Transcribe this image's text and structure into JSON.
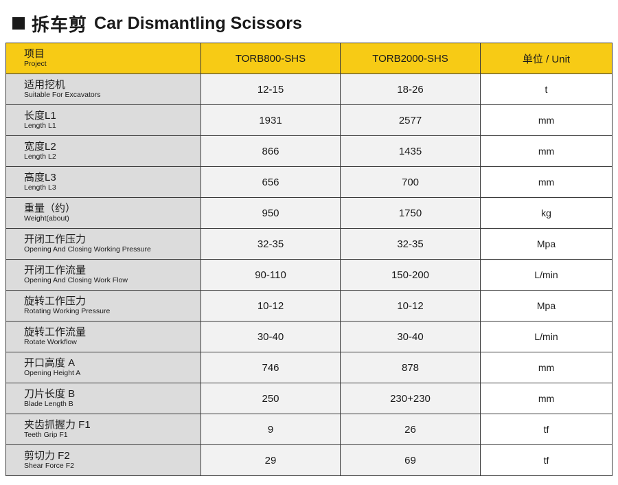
{
  "title": {
    "cn": "拆车剪",
    "en": "Car Dismantling Scissors"
  },
  "header": {
    "project_cn": "项目",
    "project_en": "Project",
    "model1": "TORB800-SHS",
    "model2": "TORB2000-SHS",
    "unit": "单位 / Unit"
  },
  "rows": [
    {
      "cn": "适用挖机",
      "en": "Suitable For Excavators",
      "v1": "12-15",
      "v2": "18-26",
      "unit": "t"
    },
    {
      "cn": "长度L1",
      "en": "Length L1",
      "v1": "1931",
      "v2": "2577",
      "unit": "mm"
    },
    {
      "cn": "宽度L2",
      "en": "Length L2",
      "v1": "866",
      "v2": "1435",
      "unit": "mm"
    },
    {
      "cn": "高度L3",
      "en": "Length L3",
      "v1": "656",
      "v2": "700",
      "unit": "mm"
    },
    {
      "cn": "重量（约）",
      "en": "Weight(about)",
      "v1": "950",
      "v2": "1750",
      "unit": "kg"
    },
    {
      "cn": "开闭工作压力",
      "en": "Opening And Closing Working Pressure",
      "v1": "32-35",
      "v2": "32-35",
      "unit": "Mpa"
    },
    {
      "cn": "开闭工作流量",
      "en": "Opening And Closing Work Flow",
      "v1": "90-110",
      "v2": "150-200",
      "unit": "L/min"
    },
    {
      "cn": "旋转工作压力",
      "en": "Rotating Working Pressure",
      "v1": "10-12",
      "v2": "10-12",
      "unit": "Mpa"
    },
    {
      "cn": "旋转工作流量",
      "en": "Rotate Workflow",
      "v1": "30-40",
      "v2": "30-40",
      "unit": "L/min"
    },
    {
      "cn": "开口高度 A",
      "en": "Opening Height A",
      "v1": "746",
      "v2": "878",
      "unit": "mm"
    },
    {
      "cn": "刀片长度 B",
      "en": "Blade Length B",
      "v1": "250",
      "v2": "230+230",
      "unit": "mm"
    },
    {
      "cn": "夹齿抓握力 F1",
      "en": "Teeth Grip F1",
      "v1": "9",
      "v2": "26",
      "unit": "tf"
    },
    {
      "cn": "剪切力 F2",
      "en": "Shear Force F2",
      "v1": "29",
      "v2": "69",
      "unit": "tf"
    }
  ]
}
